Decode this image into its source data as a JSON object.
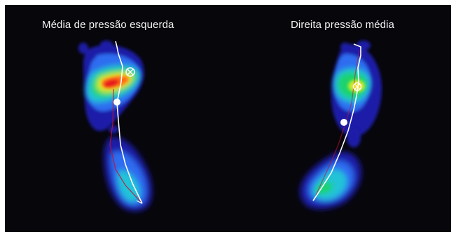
{
  "figure": {
    "left_panel": {
      "title": "Média de pressão esquerda"
    },
    "right_panel": {
      "title": "Direita pressão média"
    },
    "colors": {
      "background": "#07060b",
      "scale": [
        "#1b1fa8",
        "#2f6cf0",
        "#22c3d8",
        "#1fd36a",
        "#c8ef2a",
        "#ffd21a",
        "#ff6a12",
        "#e6121a"
      ],
      "trajectory": "#ffffff",
      "secondary_trajectory": "#c8102e"
    },
    "markers": [
      "peak-pressure-crosshair",
      "center-of-pressure-dot"
    ]
  }
}
